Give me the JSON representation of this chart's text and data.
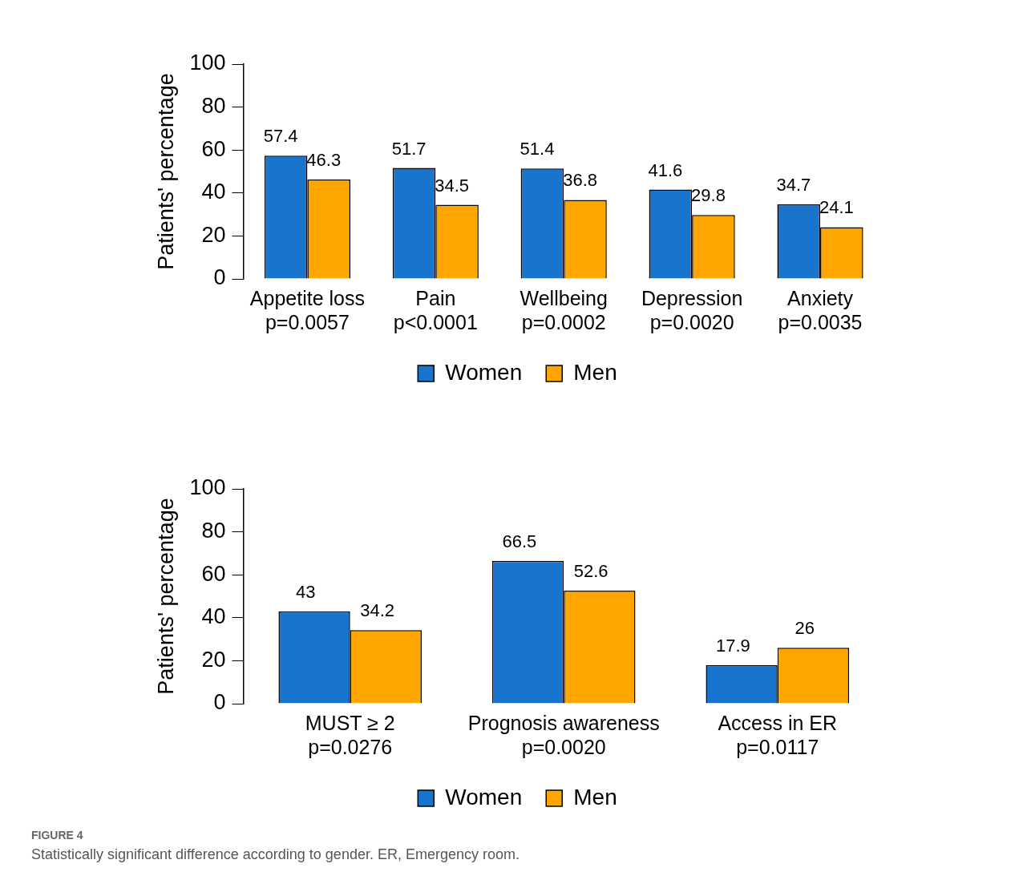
{
  "chart_data": [
    {
      "type": "bar",
      "ylabel": "Patients' percentage",
      "categories": [
        "Appetite loss\np=0.0057",
        "Pain\np<0.0001",
        "Wellbeing\np=0.0002",
        "Depression\np=0.0020",
        "Anxiety\np=0.0035"
      ],
      "series": [
        {
          "name": "Women",
          "color": "#1874cd",
          "values": [
            57.4,
            51.7,
            51.4,
            41.6,
            34.7
          ]
        },
        {
          "name": "Men",
          "color": "#ffa500",
          "values": [
            46.3,
            34.5,
            36.8,
            29.8,
            24.1
          ]
        }
      ],
      "ylim": [
        0,
        100
      ],
      "yticks": [
        0,
        20,
        40,
        60,
        80,
        100
      ],
      "data_labels": true,
      "legend": "bottom",
      "grid": false
    },
    {
      "type": "bar",
      "ylabel": "Patients' percentage",
      "categories": [
        "MUST ≥ 2\np=0.0276",
        "Prognosis awareness\np=0.0020",
        "Access in ER\np=0.0117"
      ],
      "series": [
        {
          "name": "Women",
          "color": "#1874cd",
          "values": [
            43,
            66.5,
            17.9
          ]
        },
        {
          "name": "Men",
          "color": "#ffa500",
          "values": [
            34.2,
            52.6,
            26
          ]
        }
      ],
      "ylim": [
        0,
        100
      ],
      "yticks": [
        0,
        20,
        40,
        60,
        80,
        100
      ],
      "data_labels": true,
      "legend": "bottom",
      "grid": false,
      "annotations": [
        "FIGURE 4",
        "Statistically significant difference according to gender. ER, Emergency room."
      ]
    }
  ]
}
